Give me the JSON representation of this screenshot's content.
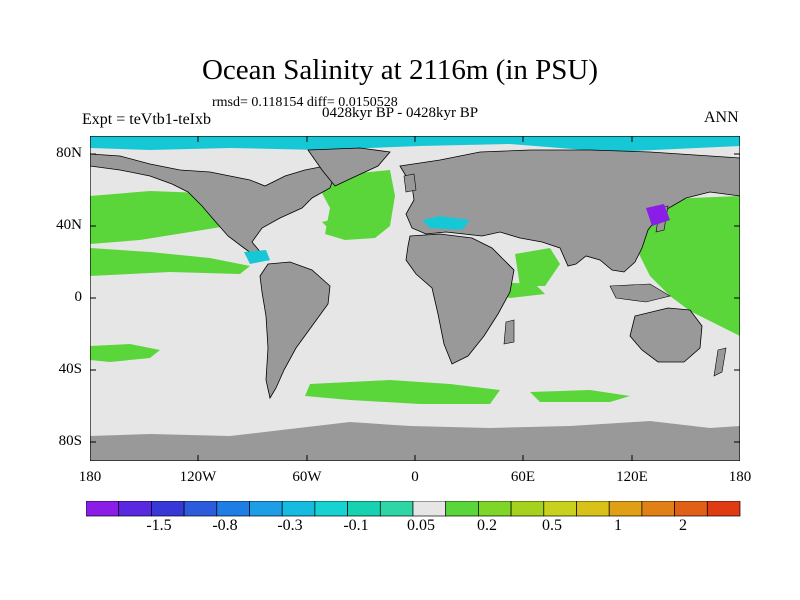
{
  "title": "Ocean Salinity at 2116m (in PSU)",
  "stats_line": "rmsd= 0.118154 diff= 0.0150528",
  "experiment": "Expt = teVtb1-teIxb",
  "period": "0428kyr BP - 0428kyr BP",
  "season": "ANN",
  "lat_labels": [
    "80N",
    "40N",
    "0",
    "40S",
    "80S"
  ],
  "lon_labels": [
    "180",
    "120W",
    "60W",
    "0",
    "60E",
    "120E",
    "180"
  ],
  "colorbar": {
    "colors": [
      "#8a1ee6",
      "#5a28e0",
      "#3838d6",
      "#2c5cdc",
      "#1e7ee6",
      "#1e9ee6",
      "#16bce0",
      "#16d2d2",
      "#16d2b0",
      "#2ed6a6",
      "#e6e6e6",
      "#5ad63a",
      "#7ed628",
      "#a6d21e",
      "#c8d21e",
      "#d8c21a",
      "#e0a016",
      "#e08016",
      "#e06016",
      "#e03c14"
    ],
    "labels": [
      "-1.5",
      "-0.8",
      "-0.3",
      "-0.1",
      "0.05",
      "0.2",
      "0.5",
      "1",
      "2"
    ]
  },
  "map_colors": {
    "land": "#999999",
    "ocean_neutral": "#e6e6e6",
    "positive": "#5ad63a",
    "negative_cyan": "#16c8d6",
    "negative_violet": "#8a1ee6",
    "coast": "#000000"
  }
}
